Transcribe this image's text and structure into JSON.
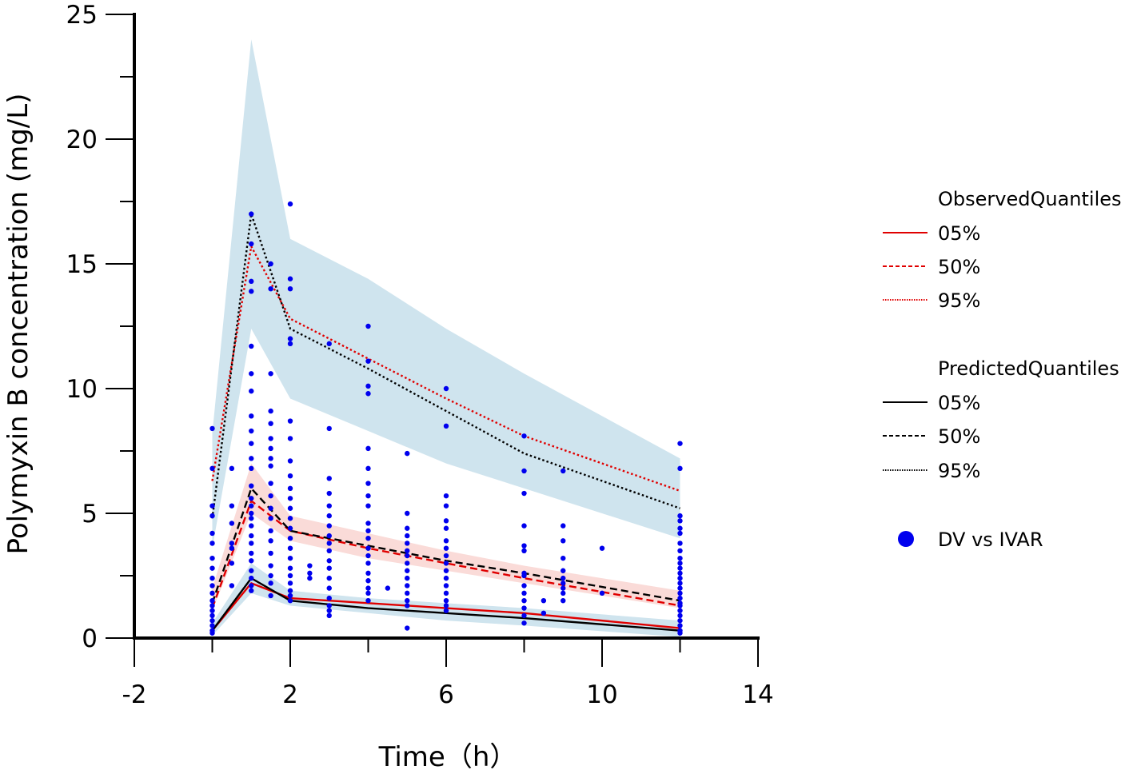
{
  "chart_data": {
    "type": "line",
    "title": "",
    "xlabel": "Time（h）",
    "ylabel": "Polymyxin B concentration (mg/L)",
    "xlim": [
      -2,
      14
    ],
    "ylim": [
      0,
      25
    ],
    "xticks": [
      -2,
      2,
      6,
      10,
      14
    ],
    "yticks": [
      0,
      5,
      10,
      15,
      20,
      25
    ],
    "xtick_labels": [
      "-2",
      "2",
      "6",
      "10",
      "14"
    ],
    "ytick_labels": [
      "0",
      "5",
      "10",
      "15",
      "20",
      "25"
    ],
    "legend": {
      "placement": "right",
      "observed_title": "ObservedQuantiles",
      "predicted_title": "PredictedQuantiles",
      "observed_items": [
        "05%",
        "50%",
        "95%"
      ],
      "predicted_items": [
        "05%",
        "50%",
        "95%"
      ],
      "points_label": "DV vs IVAR"
    },
    "colors": {
      "observed": "#e00000",
      "predicted": "#000000",
      "points": "#0000ee",
      "outer_band": "#cfe4ee",
      "median_band": "#fadbd8"
    },
    "bands": [
      {
        "name": "95% PI high",
        "color": "#cfe4ee",
        "x": [
          0,
          1,
          2,
          4,
          6,
          8,
          12
        ],
        "lower": [
          3.6,
          12.4,
          9.6,
          8.3,
          7.0,
          6.0,
          4.0
        ],
        "upper": [
          8.2,
          24.0,
          16.0,
          14.4,
          12.4,
          10.6,
          7.2
        ]
      },
      {
        "name": "median PI",
        "color": "#fadbd8",
        "x": [
          0,
          1,
          2,
          4,
          6,
          8,
          12
        ],
        "lower": [
          1.1,
          5.0,
          3.9,
          3.2,
          2.7,
          2.2,
          1.2
        ],
        "upper": [
          2.0,
          7.0,
          4.9,
          4.2,
          3.5,
          2.9,
          1.9
        ]
      },
      {
        "name": "5% PI",
        "color": "#cfe4ee",
        "x": [
          0,
          1,
          2,
          4,
          6,
          8,
          12
        ],
        "lower": [
          0.1,
          1.8,
          1.3,
          1.0,
          0.7,
          0.5,
          0.05
        ],
        "upper": [
          0.6,
          3.0,
          1.9,
          1.6,
          1.4,
          1.2,
          0.7
        ]
      }
    ],
    "series": [
      {
        "name": "Observed 05%",
        "group": "observed",
        "dash": "solid",
        "x": [
          0,
          1,
          2,
          4,
          6,
          8,
          12
        ],
        "y": [
          0.3,
          2.2,
          1.6,
          1.4,
          1.2,
          1.0,
          0.4
        ]
      },
      {
        "name": "Observed 50%",
        "group": "observed",
        "dash": "dashed",
        "x": [
          0,
          1,
          2,
          4,
          6,
          8,
          12
        ],
        "y": [
          1.2,
          5.5,
          4.3,
          3.6,
          3.0,
          2.4,
          1.3
        ]
      },
      {
        "name": "Observed 95%",
        "group": "observed",
        "dash": "dotted",
        "x": [
          0,
          1,
          2,
          4,
          6,
          8,
          12
        ],
        "y": [
          6.3,
          15.7,
          12.8,
          11.2,
          9.6,
          8.1,
          5.9
        ]
      },
      {
        "name": "Predicted 05%",
        "group": "predicted",
        "dash": "solid",
        "x": [
          0,
          1,
          2,
          4,
          6,
          8,
          12
        ],
        "y": [
          0.3,
          2.4,
          1.5,
          1.2,
          1.0,
          0.8,
          0.3
        ]
      },
      {
        "name": "Predicted 50%",
        "group": "predicted",
        "dash": "dashed",
        "x": [
          0,
          1,
          2,
          4,
          6,
          8,
          12
        ],
        "y": [
          1.4,
          6.0,
          4.3,
          3.7,
          3.1,
          2.6,
          1.5
        ]
      },
      {
        "name": "Predicted 95%",
        "group": "predicted",
        "dash": "dotted",
        "x": [
          0,
          1,
          2,
          4,
          6,
          8,
          12
        ],
        "y": [
          4.8,
          17.0,
          12.4,
          10.8,
          9.1,
          7.4,
          5.2
        ]
      }
    ],
    "points": [
      [
        0,
        8.4
      ],
      [
        0,
        6.8
      ],
      [
        0,
        5.3
      ],
      [
        0,
        4.9
      ],
      [
        0,
        4.2
      ],
      [
        0,
        3.8
      ],
      [
        0,
        3.2
      ],
      [
        0,
        2.8
      ],
      [
        0,
        2.4
      ],
      [
        0,
        2.1
      ],
      [
        0,
        1.8
      ],
      [
        0,
        1.5
      ],
      [
        0,
        1.3
      ],
      [
        0,
        1.1
      ],
      [
        0,
        0.9
      ],
      [
        0,
        0.7
      ],
      [
        0,
        0.5
      ],
      [
        0,
        0.3
      ],
      [
        0,
        0.2
      ],
      [
        0.5,
        6.8
      ],
      [
        0.5,
        5.3
      ],
      [
        0.5,
        4.6
      ],
      [
        0.5,
        3.8
      ],
      [
        0.5,
        3.6
      ],
      [
        0.5,
        3.0
      ],
      [
        0.5,
        2.1
      ],
      [
        1,
        17.0
      ],
      [
        1,
        15.8
      ],
      [
        1,
        14.3
      ],
      [
        1,
        13.9
      ],
      [
        1,
        11.7
      ],
      [
        1,
        10.6
      ],
      [
        1,
        9.9
      ],
      [
        1,
        8.9
      ],
      [
        1,
        8.3
      ],
      [
        1,
        7.8
      ],
      [
        1,
        7.2
      ],
      [
        1,
        6.8
      ],
      [
        1,
        6.1
      ],
      [
        1,
        5.6
      ],
      [
        1,
        5.3
      ],
      [
        1,
        5.0
      ],
      [
        1,
        4.8
      ],
      [
        1,
        4.5
      ],
      [
        1,
        4.1
      ],
      [
        1,
        3.8
      ],
      [
        1,
        3.4
      ],
      [
        1,
        3.1
      ],
      [
        1,
        2.7
      ],
      [
        1,
        2.4
      ],
      [
        1,
        2.1
      ],
      [
        1,
        1.9
      ],
      [
        1.5,
        15.0
      ],
      [
        1.5,
        14.0
      ],
      [
        1.5,
        10.6
      ],
      [
        1.5,
        9.1
      ],
      [
        1.5,
        8.6
      ],
      [
        1.5,
        8.0
      ],
      [
        1.5,
        7.6
      ],
      [
        1.5,
        7.2
      ],
      [
        1.5,
        6.9
      ],
      [
        1.5,
        6.2
      ],
      [
        1.5,
        5.7
      ],
      [
        1.5,
        5.2
      ],
      [
        1.5,
        4.8
      ],
      [
        1.5,
        4.3
      ],
      [
        1.5,
        3.9
      ],
      [
        1.5,
        3.4
      ],
      [
        1.5,
        2.9
      ],
      [
        1.5,
        2.5
      ],
      [
        1.5,
        2.2
      ],
      [
        1.5,
        1.7
      ],
      [
        2,
        17.4
      ],
      [
        2,
        14.4
      ],
      [
        2,
        14.0
      ],
      [
        2,
        12.0
      ],
      [
        2,
        11.8
      ],
      [
        2,
        8.7
      ],
      [
        2,
        8.0
      ],
      [
        2,
        7.1
      ],
      [
        2,
        6.5
      ],
      [
        2,
        6.0
      ],
      [
        2,
        5.6
      ],
      [
        2,
        5.2
      ],
      [
        2,
        4.8
      ],
      [
        2,
        4.4
      ],
      [
        2,
        4.0
      ],
      [
        2,
        3.6
      ],
      [
        2,
        3.2
      ],
      [
        2,
        2.8
      ],
      [
        2,
        2.5
      ],
      [
        2,
        2.2
      ],
      [
        2,
        1.9
      ],
      [
        2,
        1.7
      ],
      [
        2,
        1.5
      ],
      [
        2.5,
        2.9
      ],
      [
        2.5,
        2.6
      ],
      [
        2.5,
        2.4
      ],
      [
        3,
        11.8
      ],
      [
        3,
        8.4
      ],
      [
        3,
        6.4
      ],
      [
        3,
        5.8
      ],
      [
        3,
        5.3
      ],
      [
        3,
        4.9
      ],
      [
        3,
        4.5
      ],
      [
        3,
        4.1
      ],
      [
        3,
        3.8
      ],
      [
        3,
        3.5
      ],
      [
        3,
        3.1
      ],
      [
        3,
        2.8
      ],
      [
        3,
        2.4
      ],
      [
        3,
        2.0
      ],
      [
        3,
        1.6
      ],
      [
        3,
        1.3
      ],
      [
        3,
        1.1
      ],
      [
        3,
        0.9
      ],
      [
        4,
        12.5
      ],
      [
        4,
        11.1
      ],
      [
        4,
        10.1
      ],
      [
        4,
        9.8
      ],
      [
        4,
        7.6
      ],
      [
        4,
        6.8
      ],
      [
        4,
        6.2
      ],
      [
        4,
        5.7
      ],
      [
        4,
        5.3
      ],
      [
        4,
        4.6
      ],
      [
        4,
        4.3
      ],
      [
        4,
        4.0
      ],
      [
        4,
        3.6
      ],
      [
        4,
        3.3
      ],
      [
        4,
        3.0
      ],
      [
        4,
        2.6
      ],
      [
        4,
        2.3
      ],
      [
        4,
        2.0
      ],
      [
        4,
        1.8
      ],
      [
        4,
        1.5
      ],
      [
        4.5,
        2.0
      ],
      [
        5,
        7.4
      ],
      [
        5,
        5.0
      ],
      [
        5,
        4.4
      ],
      [
        5,
        4.1
      ],
      [
        5,
        3.8
      ],
      [
        5,
        3.5
      ],
      [
        5,
        3.3
      ],
      [
        5,
        3.0
      ],
      [
        5,
        2.7
      ],
      [
        5,
        2.4
      ],
      [
        5,
        2.1
      ],
      [
        5,
        1.8
      ],
      [
        5,
        1.5
      ],
      [
        5,
        1.3
      ],
      [
        5,
        0.4
      ],
      [
        6,
        10.0
      ],
      [
        6,
        8.5
      ],
      [
        6,
        5.7
      ],
      [
        6,
        5.3
      ],
      [
        6,
        4.7
      ],
      [
        6,
        4.4
      ],
      [
        6,
        3.9
      ],
      [
        6,
        3.6
      ],
      [
        6,
        3.3
      ],
      [
        6,
        3.0
      ],
      [
        6,
        2.7
      ],
      [
        6,
        2.4
      ],
      [
        6,
        2.1
      ],
      [
        6,
        1.8
      ],
      [
        6,
        1.5
      ],
      [
        6,
        1.3
      ],
      [
        6,
        1.1
      ],
      [
        8,
        8.1
      ],
      [
        8,
        6.7
      ],
      [
        8,
        5.8
      ],
      [
        8,
        4.5
      ],
      [
        8,
        3.7
      ],
      [
        8,
        3.5
      ],
      [
        8,
        2.6
      ],
      [
        8,
        2.5
      ],
      [
        8,
        2.1
      ],
      [
        8,
        1.8
      ],
      [
        8,
        1.5
      ],
      [
        8,
        1.2
      ],
      [
        8,
        0.9
      ],
      [
        8,
        0.6
      ],
      [
        8.5,
        1.5
      ],
      [
        8.5,
        1.0
      ],
      [
        9,
        6.7
      ],
      [
        9,
        4.5
      ],
      [
        9,
        3.9
      ],
      [
        9,
        3.2
      ],
      [
        9,
        2.7
      ],
      [
        9,
        2.4
      ],
      [
        9,
        2.2
      ],
      [
        9,
        2.0
      ],
      [
        9,
        1.8
      ],
      [
        9,
        1.5
      ],
      [
        10,
        3.6
      ],
      [
        10,
        1.8
      ],
      [
        12,
        7.8
      ],
      [
        12,
        6.8
      ],
      [
        12,
        4.9
      ],
      [
        12,
        4.7
      ],
      [
        12,
        4.4
      ],
      [
        12,
        4.2
      ],
      [
        12,
        3.8
      ],
      [
        12,
        3.5
      ],
      [
        12,
        3.2
      ],
      [
        12,
        3.0
      ],
      [
        12,
        2.8
      ],
      [
        12,
        2.6
      ],
      [
        12,
        2.4
      ],
      [
        12,
        2.2
      ],
      [
        12,
        2.0
      ],
      [
        12,
        1.8
      ],
      [
        12,
        1.6
      ],
      [
        12,
        1.4
      ],
      [
        12,
        1.3
      ],
      [
        12,
        1.1
      ],
      [
        12,
        0.9
      ],
      [
        12,
        0.7
      ],
      [
        12,
        0.5
      ],
      [
        12,
        0.3
      ],
      [
        12,
        0.2
      ]
    ]
  }
}
